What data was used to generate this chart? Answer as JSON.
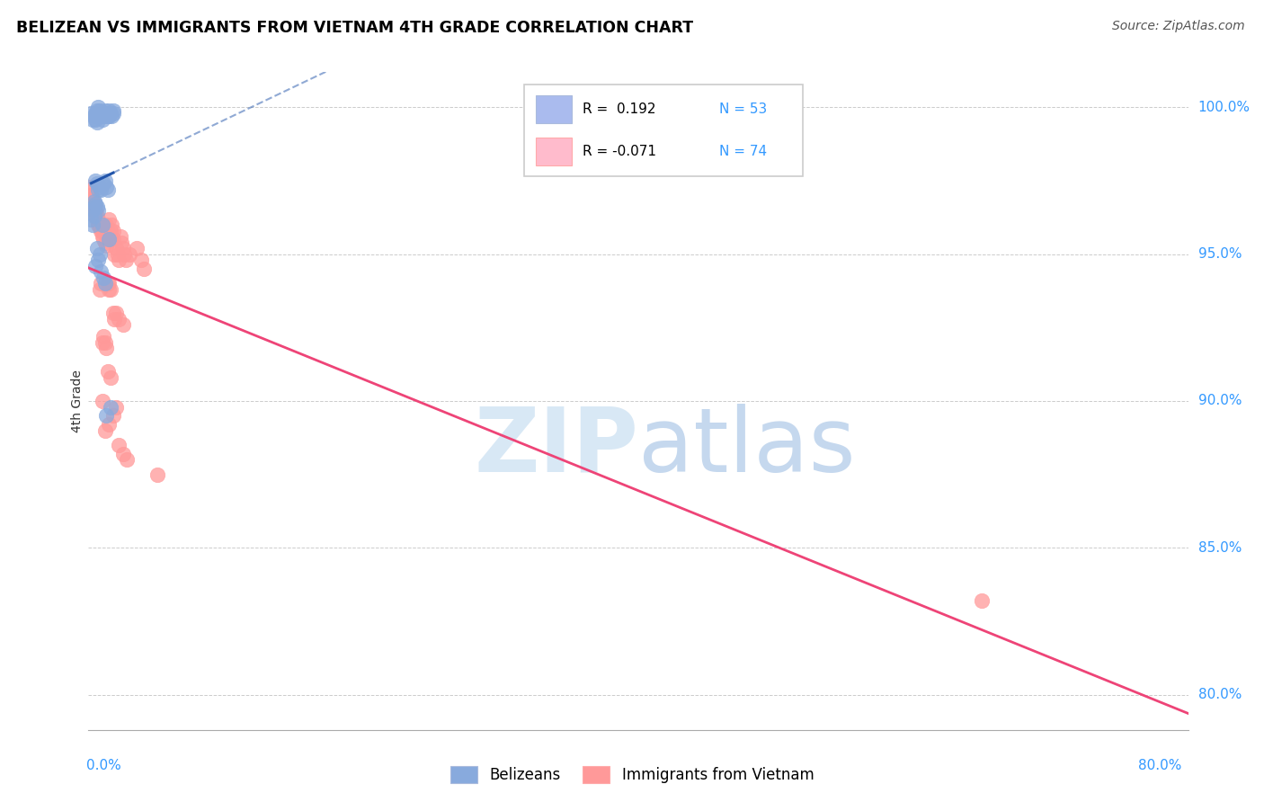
{
  "title": "BELIZEAN VS IMMIGRANTS FROM VIETNAM 4TH GRADE CORRELATION CHART",
  "source": "Source: ZipAtlas.com",
  "ylabel": "4th Grade",
  "ytick_values": [
    0.8,
    0.85,
    0.9,
    0.95,
    1.0
  ],
  "xmin": 0.0,
  "xmax": 0.8,
  "ymin": 0.788,
  "ymax": 1.012,
  "blue_color": "#88AADD",
  "pink_color": "#FF9999",
  "blue_line_color": "#2255AA",
  "pink_line_color": "#EE4477",
  "blue_fill_color": "#AABBEE",
  "pink_fill_color": "#FFBBCC",
  "watermark_color": "#D8E8F5",
  "belizean_x": [
    0.002,
    0.003,
    0.004,
    0.005,
    0.006,
    0.007,
    0.008,
    0.005,
    0.006,
    0.008,
    0.01,
    0.012,
    0.01,
    0.011,
    0.012,
    0.013,
    0.015,
    0.015,
    0.016,
    0.017,
    0.018,
    0.018,
    0.014,
    0.01,
    0.006,
    0.007,
    0.005,
    0.008,
    0.009,
    0.011,
    0.012,
    0.013,
    0.014,
    0.003,
    0.004,
    0.004,
    0.005,
    0.006,
    0.007,
    0.003,
    0.002,
    0.004,
    0.01,
    0.015,
    0.008,
    0.006,
    0.007,
    0.005,
    0.009,
    0.011,
    0.012,
    0.016,
    0.013
  ],
  "belizean_y": [
    0.998,
    0.996,
    0.997,
    0.998,
    0.999,
    1.0,
    0.999,
    0.996,
    0.995,
    0.997,
    0.998,
    0.997,
    0.996,
    0.998,
    0.999,
    0.998,
    0.997,
    0.999,
    0.998,
    0.997,
    0.999,
    0.998,
    0.997,
    0.997,
    0.974,
    0.972,
    0.975,
    0.973,
    0.972,
    0.974,
    0.975,
    0.973,
    0.972,
    0.965,
    0.968,
    0.966,
    0.967,
    0.966,
    0.965,
    0.96,
    0.962,
    0.963,
    0.96,
    0.955,
    0.95,
    0.952,
    0.948,
    0.946,
    0.944,
    0.942,
    0.94,
    0.898,
    0.895
  ],
  "vietnam_x": [
    0.001,
    0.002,
    0.002,
    0.003,
    0.003,
    0.003,
    0.004,
    0.004,
    0.005,
    0.005,
    0.006,
    0.006,
    0.007,
    0.007,
    0.007,
    0.008,
    0.008,
    0.009,
    0.009,
    0.01,
    0.01,
    0.011,
    0.012,
    0.013,
    0.013,
    0.014,
    0.015,
    0.015,
    0.016,
    0.016,
    0.017,
    0.018,
    0.018,
    0.019,
    0.02,
    0.021,
    0.022,
    0.023,
    0.024,
    0.025,
    0.026,
    0.027,
    0.014,
    0.015,
    0.015,
    0.016,
    0.008,
    0.009,
    0.03,
    0.035,
    0.038,
    0.04,
    0.018,
    0.019,
    0.02,
    0.022,
    0.025,
    0.01,
    0.011,
    0.012,
    0.013,
    0.014,
    0.016,
    0.01,
    0.02,
    0.018,
    0.015,
    0.012,
    0.022,
    0.025,
    0.028,
    0.05,
    0.65
  ],
  "vietnam_y": [
    0.973,
    0.972,
    0.97,
    0.969,
    0.968,
    0.966,
    0.965,
    0.966,
    0.965,
    0.963,
    0.962,
    0.963,
    0.962,
    0.96,
    0.961,
    0.96,
    0.959,
    0.958,
    0.959,
    0.958,
    0.956,
    0.955,
    0.954,
    0.953,
    0.96,
    0.958,
    0.957,
    0.962,
    0.958,
    0.955,
    0.96,
    0.958,
    0.955,
    0.95,
    0.952,
    0.95,
    0.948,
    0.956,
    0.954,
    0.952,
    0.95,
    0.948,
    0.94,
    0.938,
    0.94,
    0.938,
    0.938,
    0.94,
    0.95,
    0.952,
    0.948,
    0.945,
    0.93,
    0.928,
    0.93,
    0.928,
    0.926,
    0.92,
    0.922,
    0.92,
    0.918,
    0.91,
    0.908,
    0.9,
    0.898,
    0.895,
    0.892,
    0.89,
    0.885,
    0.882,
    0.88,
    0.875,
    0.832
  ]
}
